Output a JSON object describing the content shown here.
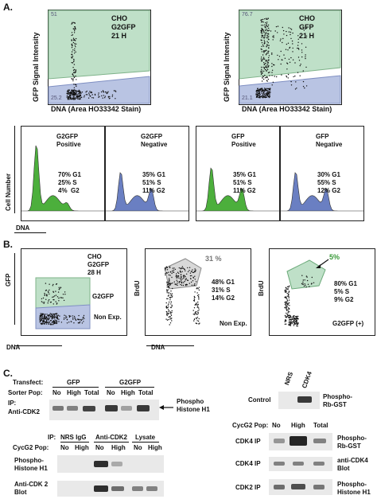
{
  "panel_A": {
    "letter": "A.",
    "flow_left": {
      "title_lines": [
        "CHO",
        "G2GFP",
        "21 H"
      ],
      "ylabel": "GFP Signal Intensity",
      "xlabel": "DNA (Area HO33342 Stain)",
      "y_ticks": [
        "10000",
        "1000",
        "100",
        "10"
      ],
      "x_ticks": [
        "200",
        "400",
        "600",
        "800",
        "1000"
      ],
      "gate_upper": "51",
      "gate_lower": "25.2"
    },
    "flow_right": {
      "title_lines": [
        "CHO",
        "GFP",
        "21 H"
      ],
      "ylabel": "GFP Signal Intensity",
      "xlabel": "DNA (Area HO33342 Stain)",
      "y_ticks": [
        "10000",
        "1000",
        "100",
        "10"
      ],
      "x_ticks": [
        "200",
        "400",
        "600",
        "800",
        "1000"
      ],
      "gate_upper": "76.7",
      "gate_lower": "21.1"
    },
    "histograms": [
      {
        "title_lines": [
          "G2GFP",
          "Positive"
        ],
        "stats": [
          "70% G1",
          "25% S",
          "4%  G2"
        ],
        "color": "#4caf3c"
      },
      {
        "title_lines": [
          "G2GFP",
          "Negative"
        ],
        "stats": [
          "35% G1",
          "51% S",
          "11% G2"
        ],
        "color": "#6a7fc2"
      },
      {
        "title_lines": [
          "GFP",
          "Positive"
        ],
        "stats": [
          "35% G1",
          "51% S",
          "11% G2"
        ],
        "color": "#4caf3c"
      },
      {
        "title_lines": [
          "GFP",
          "Negative"
        ],
        "stats": [
          "30% G1",
          "55% S",
          "12% G2"
        ],
        "color": "#6a7fc2"
      }
    ],
    "hist_ylabel": "Cell Number",
    "hist_xlabel": "DNA"
  },
  "panel_B": {
    "letter": "B.",
    "plot1": {
      "title_lines": [
        "CHO",
        "G2GFP",
        "28 H"
      ],
      "ylabel": "GFP",
      "xlabel": "DNA",
      "gate_upper": "G2GFP",
      "gate_lower": "Non Exp."
    },
    "plot2": {
      "pct": "31 %",
      "stats": [
        "48% G1",
        "31% S",
        "14% G2"
      ],
      "note": "Non Exp.",
      "ylabel": "BrdU",
      "xlabel": "DNA"
    },
    "plot3": {
      "pct": "5%",
      "stats": [
        "80% G1",
        "5% S",
        "9% G2"
      ],
      "note": "G2GFP (+)",
      "ylabel": "BrdU"
    },
    "x_ticks": [
      "200",
      "400",
      "600",
      "800"
    ],
    "y_ticks": [
      "10000",
      "1000",
      "100",
      "10"
    ]
  },
  "panel_C": {
    "letter": "C.",
    "blot1": {
      "transfect_label": "Transfect:",
      "groups": [
        "GFP",
        "G2GFP"
      ],
      "sorter_label": "Sorter Pop:",
      "lanes": [
        "No",
        "High",
        "Total",
        "No",
        "High",
        "Total"
      ],
      "ip_label": "IP:",
      "ip_value": "Anti-CDK2",
      "band_label": [
        "Phospho",
        "Histone H1"
      ]
    },
    "blot2": {
      "ip_label": "IP:",
      "ip_groups": [
        "NRS IgG",
        "Anti-CDK2",
        "Lysate"
      ],
      "pop_label": "CycG2 Pop:",
      "lanes": [
        "No",
        "High",
        "No",
        "High",
        "No",
        "High"
      ],
      "row1": [
        "Phospho-",
        "Histone H1"
      ],
      "row2": [
        "Anti-CDK 2",
        "Blot"
      ]
    },
    "blot3": {
      "lane_labels": [
        "NRS",
        "CDK4"
      ],
      "row_label": "Control",
      "band_label": [
        "Phospho-",
        "Rb-GST"
      ]
    },
    "blot4": {
      "pop_label": "CycG2 Pop:",
      "lanes": [
        "No",
        "High",
        "Total"
      ],
      "rows": [
        {
          "label": "CDK4 IP",
          "right": [
            "Phospho-",
            "Rb-GST"
          ]
        },
        {
          "label": "CDK4 IP",
          "right": [
            "anti-CDK4",
            "Blot"
          ]
        },
        {
          "label": "CDK2 IP",
          "right": [
            "Phospho-",
            "Histone H1"
          ]
        }
      ]
    }
  }
}
